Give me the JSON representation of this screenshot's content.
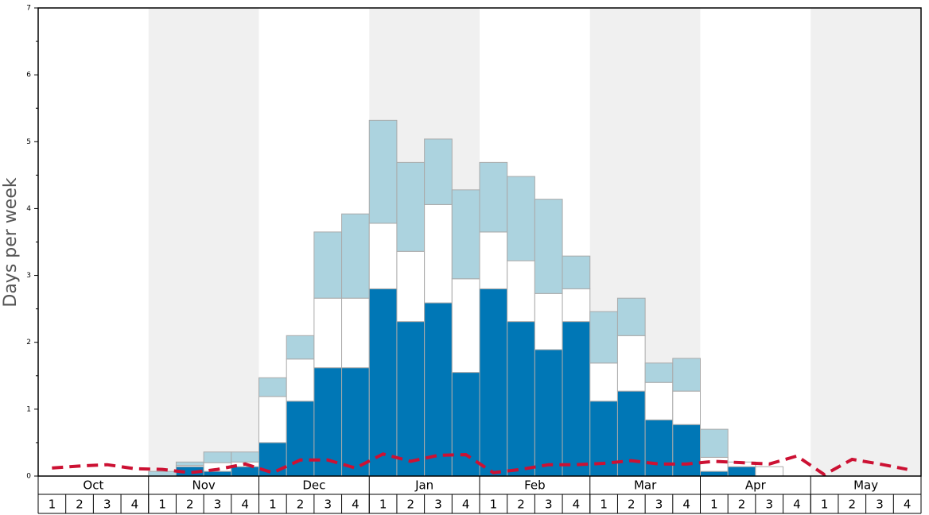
{
  "chart_data": {
    "type": "bar",
    "stacked": true,
    "y_label": "Days per week",
    "months": [
      "Oct",
      "Nov",
      "Dec",
      "Jan",
      "Feb",
      "Mar",
      "Apr",
      "May"
    ],
    "weeks": [
      "1",
      "2",
      "3",
      "4"
    ],
    "ylim": [
      0,
      7
    ],
    "yticks": [
      0,
      1,
      2,
      3,
      4,
      5,
      6,
      7
    ],
    "series": [
      {
        "color": "#0077b6",
        "values": [
          0,
          0,
          0,
          0,
          0,
          0.14,
          0.07,
          0.14,
          0.5,
          1.12,
          1.62,
          1.62,
          2.8,
          2.31,
          2.59,
          1.55,
          2.8,
          2.31,
          1.89,
          2.31,
          1.12,
          1.27,
          0.84,
          0.77,
          0.07,
          0.14,
          0,
          0,
          0,
          0,
          0,
          0
        ]
      },
      {
        "color": "#ffffff",
        "values": [
          0,
          0,
          0,
          0,
          0,
          0.02,
          0.13,
          0.07,
          0.69,
          0.63,
          1.04,
          1.04,
          0.98,
          1.05,
          1.47,
          1.4,
          0.85,
          0.91,
          0.84,
          0.49,
          0.57,
          0.83,
          0.56,
          0.5,
          0.21,
          0.07,
          0.14,
          0,
          0,
          0,
          0,
          0
        ]
      },
      {
        "color": "#acd3df",
        "values": [
          0,
          0,
          0,
          0,
          0.07,
          0.05,
          0.16,
          0.15,
          0.28,
          0.35,
          0.99,
          1.26,
          1.54,
          1.33,
          0.98,
          1.33,
          1.04,
          1.26,
          1.41,
          0.49,
          0.77,
          0.56,
          0.29,
          0.49,
          0.42,
          0,
          0,
          0,
          0,
          0,
          0,
          0
        ]
      },
      {
        "type": "line",
        "color": "#cc1133",
        "values": [
          0.12,
          0.15,
          0.17,
          0.11,
          0.1,
          0.05,
          0.1,
          0.18,
          0.05,
          0.24,
          0.24,
          0.12,
          0.33,
          0.22,
          0.31,
          0.32,
          0.05,
          0.1,
          0.17,
          0.17,
          0.19,
          0.23,
          0.18,
          0.18,
          0.22,
          0.2,
          0.18,
          0.3,
          0.02,
          0.25,
          0.18,
          0.1
        ]
      }
    ]
  }
}
